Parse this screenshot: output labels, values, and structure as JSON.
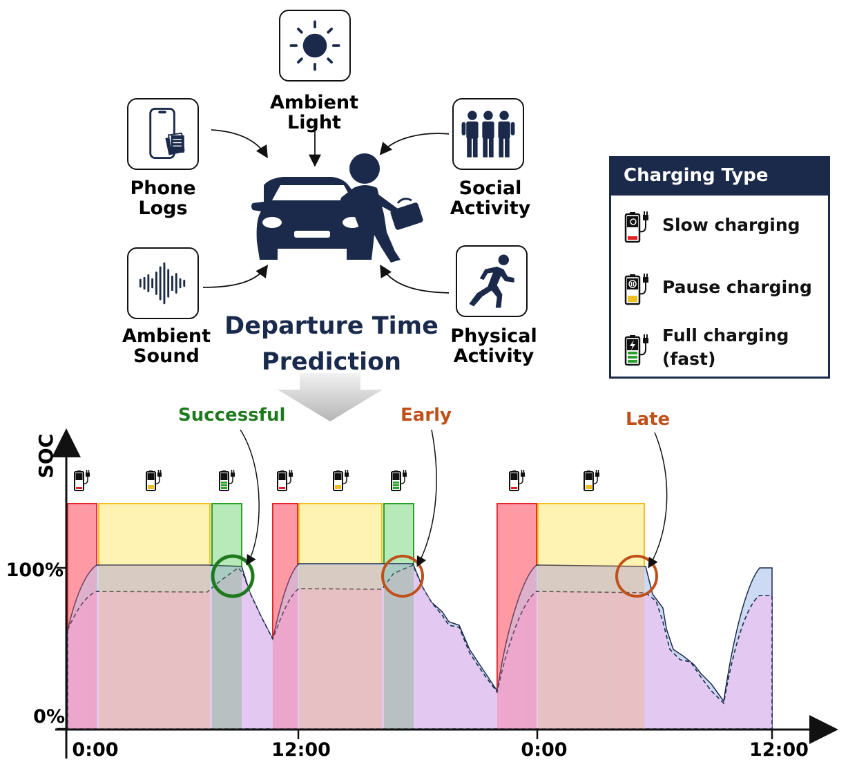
{
  "sources": {
    "ambient_light": "Ambient Light",
    "phone_logs": "Phone Logs",
    "social_activity": "Social Activity",
    "ambient_sound": "Ambient Sound",
    "physical_activity": "Physical Activity"
  },
  "title": "Departure Time Prediction",
  "legend": {
    "title": "Charging Type",
    "items": [
      {
        "label": "Slow charging",
        "color": "#e02020",
        "icon": "battery-snail-icon"
      },
      {
        "label": "Pause charging",
        "color": "#f0c020",
        "icon": "battery-pause-icon"
      },
      {
        "label": "Full charging (fast)",
        "color": "#2aa02a",
        "icon": "battery-bolt-icon"
      }
    ]
  },
  "outcomes": [
    {
      "label": "Successful",
      "color": "#1f7a1f"
    },
    {
      "label": "Early",
      "color": "#c0501a"
    },
    {
      "label": "Late",
      "color": "#c0501a"
    }
  ],
  "chart_data": {
    "type": "area",
    "ylabel": "SOC",
    "yticks": [
      "100%",
      "0%"
    ],
    "xticks": [
      "0:00",
      "12:00",
      "0:00",
      "12:00"
    ]
  },
  "colors": {
    "navy": "#1b2a4a",
    "slow": "#ff9a9a",
    "pause": "#fff0a0",
    "fast": "#a6e3a6",
    "discharge": "#e6c6f0",
    "actual_fill": "#c9d9f2"
  }
}
